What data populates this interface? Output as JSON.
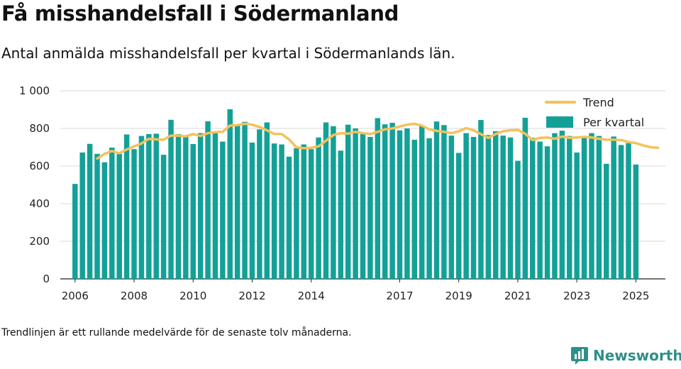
{
  "header": {
    "title": "Få misshandelsfall i Södermanland",
    "subtitle": "Antal anmälda misshandelsfall per kvartal i Södermanlands län."
  },
  "footer": {
    "note": "Trendlinjen är ett rullande medelvärde för de senaste tolv månaderna.",
    "brand": "Newsworthy",
    "brand_icon": "newsworthy-logo-icon"
  },
  "colors": {
    "bars": "#13a197",
    "trend": "#f6c15b",
    "grid": "#d9d9d9"
  },
  "chart_data": {
    "type": "bar",
    "title": "Få misshandelsfall i Södermanland",
    "subtitle": "Antal anmälda misshandelsfall per kvartal i Södermanlands län.",
    "ylim": [
      0,
      1000
    ],
    "yticks": [
      0,
      200,
      400,
      600,
      800,
      1000
    ],
    "ytick_labels": [
      "0",
      "200",
      "400",
      "600",
      "800",
      "1 000"
    ],
    "xlim": [
      2005.5,
      2026.0
    ],
    "xticks": [
      2006,
      2008,
      2010,
      2012,
      2014,
      2017,
      2019,
      2021,
      2023,
      2025
    ],
    "xtick_labels": [
      "2006",
      "2008",
      "2010",
      "2012",
      "2014",
      "2017",
      "2019",
      "2021",
      "2023",
      "2025"
    ],
    "grid": true,
    "legend_position": "top-right",
    "series": [
      {
        "name": "Per kvartal",
        "type": "bar",
        "start": "2006 Q1",
        "values": [
          505,
          672,
          718,
          665,
          620,
          698,
          665,
          768,
          690,
          760,
          770,
          772,
          660,
          846,
          770,
          755,
          717,
          775,
          838,
          775,
          730,
          902,
          815,
          835,
          725,
          795,
          832,
          720,
          715,
          650,
          695,
          715,
          690,
          752,
          832,
          812,
          682,
          820,
          800,
          775,
          755,
          855,
          822,
          830,
          790,
          800,
          740,
          812,
          748,
          837,
          818,
          762,
          670,
          775,
          755,
          845,
          765,
          785,
          762,
          752,
          628,
          857,
          750,
          730,
          705,
          775,
          788,
          760,
          672,
          760,
          775,
          760,
          612,
          757,
          712,
          722,
          608
        ]
      },
      {
        "name": "Trend",
        "type": "line",
        "start": "2006 Q4",
        "values": [
          640,
          665,
          680,
          668,
          688,
          705,
          720,
          745,
          742,
          740,
          762,
          762,
          758,
          770,
          760,
          775,
          780,
          782,
          815,
          818,
          825,
          820,
          808,
          790,
          770,
          770,
          742,
          700,
          695,
          697,
          705,
          735,
          765,
          775,
          772,
          782,
          775,
          770,
          782,
          795,
          800,
          810,
          820,
          825,
          815,
          795,
          787,
          782,
          775,
          785,
          802,
          790,
          770,
          750,
          770,
          785,
          790,
          792,
          772,
          738,
          750,
          752,
          745,
          757,
          750,
          752,
          755,
          752,
          745,
          740,
          740,
          738,
          728,
          722,
          710,
          700,
          697
        ]
      }
    ]
  }
}
